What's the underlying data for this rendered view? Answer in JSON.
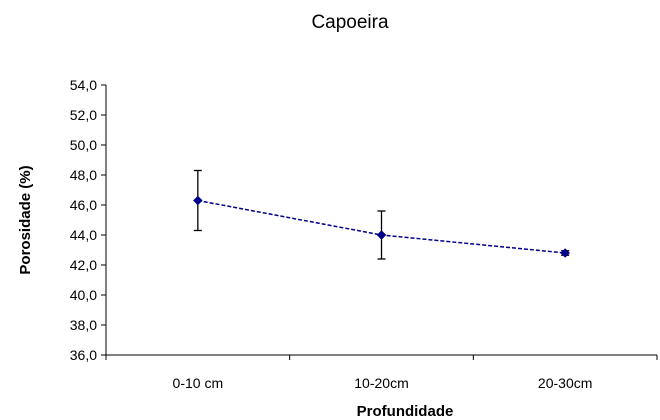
{
  "chart_data": {
    "type": "line",
    "title": "Capoeira",
    "xlabel": "Profundidade",
    "ylabel": "Porosidade (%)",
    "categories": [
      "0-10 cm",
      "10-20cm",
      "20-30cm"
    ],
    "ylim": [
      36.0,
      54.0
    ],
    "yticks": [
      "36,0",
      "38,0",
      "40,0",
      "42,0",
      "44,0",
      "46,0",
      "48,0",
      "50,0",
      "52,0",
      "54,0"
    ],
    "series": [
      {
        "values": [
          46.3,
          44.0,
          42.8
        ],
        "error_upper": [
          48.3,
          45.6,
          42.95
        ],
        "error_lower": [
          44.3,
          42.4,
          42.65
        ]
      }
    ],
    "grid": false,
    "legend": "none",
    "colors": {
      "line": "#00008B",
      "axis": "#000000"
    }
  }
}
